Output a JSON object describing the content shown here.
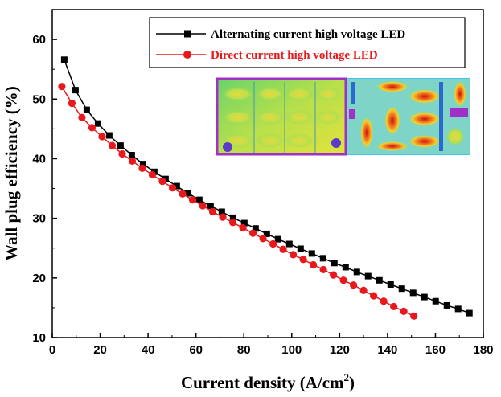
{
  "chart_data": {
    "type": "line",
    "xlabel": "Current density (A/cm",
    "xlabel_sup": "2",
    "xlabel_close": ")",
    "ylabel": "Wall plug efficiency (%)",
    "xlim": [
      0,
      180
    ],
    "ylim": [
      10,
      65
    ],
    "x_ticks": [
      "0",
      "20",
      "40",
      "60",
      "80",
      "100",
      "120",
      "140",
      "160",
      "180"
    ],
    "y_ticks": [
      "10",
      "20",
      "30",
      "40",
      "50",
      "60"
    ],
    "grid": false,
    "legend_position": "top-right",
    "series": [
      {
        "name": "Alternating current high voltage LED",
        "color": "#000000",
        "marker": "square",
        "x": [
          5,
          9.7,
          14.4,
          19.1,
          23.8,
          28.5,
          33.2,
          37.9,
          42.6,
          47.3,
          52,
          56.7,
          61.4,
          66.1,
          70.8,
          75.5,
          80.2,
          84.9,
          89.6,
          94.3,
          99,
          103.7,
          108.4,
          113.1,
          117.8,
          122.5,
          127.2,
          131.9,
          136.6,
          141.3,
          146,
          150.7,
          155.4,
          160.1,
          164.8,
          169.5,
          174.2
        ],
        "y": [
          56.6,
          51.5,
          48.2,
          45.9,
          43.9,
          42.2,
          40.6,
          39.1,
          37.8,
          36.6,
          35.4,
          34.2,
          33.1,
          32.1,
          31.1,
          30.1,
          29.2,
          28.3,
          27.4,
          26.5,
          25.7,
          24.9,
          24.1,
          23.3,
          22.5,
          21.8,
          21.0,
          20.3,
          19.6,
          18.9,
          18.2,
          17.5,
          16.8,
          16.1,
          15.4,
          14.8,
          14.1
        ]
      },
      {
        "name": "Direct current high voltage LED",
        "color": "#e8191c",
        "marker": "circle",
        "x": [
          4,
          8.2,
          12.4,
          16.6,
          20.8,
          25,
          29.2,
          33.4,
          37.6,
          41.8,
          46,
          50.2,
          54.4,
          58.6,
          62.8,
          67,
          71.2,
          75.4,
          79.6,
          83.8,
          88,
          92.2,
          96.4,
          100.6,
          104.8,
          109,
          113.2,
          117.4,
          121.6,
          125.8,
          130,
          134.2,
          138.4,
          142.6,
          146.8,
          151
        ],
        "y": [
          52.1,
          49.3,
          46.9,
          45.2,
          43.7,
          42.2,
          40.8,
          39.6,
          38.4,
          37.3,
          36.2,
          35.1,
          34.1,
          33.1,
          32.1,
          31.1,
          30.2,
          29.3,
          28.4,
          27.5,
          26.6,
          25.7,
          24.8,
          23.9,
          23.1,
          22.2,
          21.4,
          20.5,
          19.6,
          18.8,
          17.9,
          17.0,
          16.1,
          15.2,
          14.4,
          13.6
        ]
      }
    ],
    "inset_image": "thermal-map-inset"
  }
}
